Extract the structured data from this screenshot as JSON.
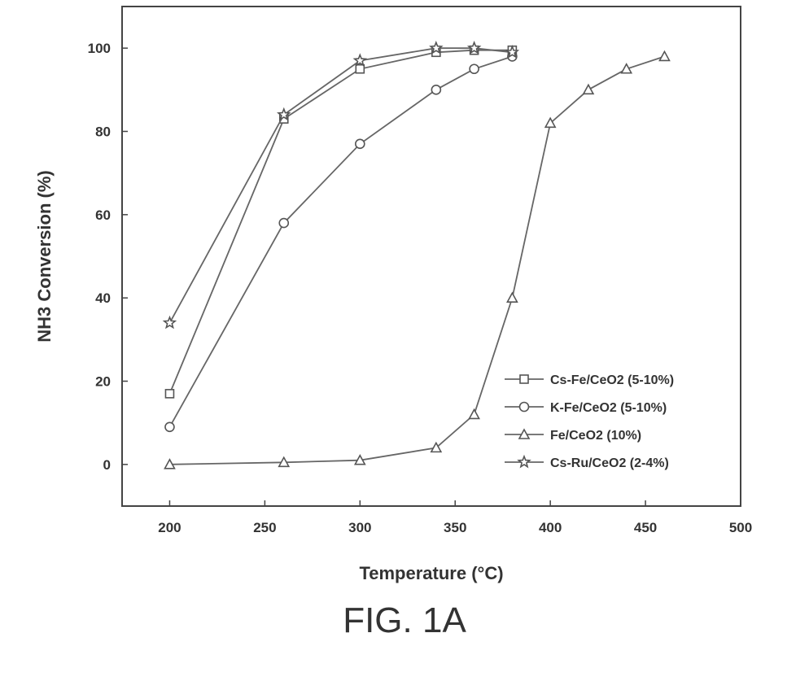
{
  "figure_caption": "FIG. 1A",
  "chart_data": {
    "type": "line",
    "xlabel": "Temperature (°C)",
    "ylabel": "NH3 Conversion (%)",
    "xlim": [
      175,
      500
    ],
    "ylim": [
      -10,
      110
    ],
    "x_ticks": [
      200,
      250,
      300,
      350,
      400,
      450,
      500
    ],
    "y_ticks": [
      0,
      20,
      40,
      60,
      80,
      100
    ],
    "grid": false,
    "legend_position": "bottom-right",
    "series": [
      {
        "name": "Cs-Fe/CeO2 (5-10%)",
        "marker": "square",
        "x": [
          200,
          260,
          300,
          340,
          360,
          380
        ],
        "y": [
          17,
          83,
          95,
          99,
          99.5,
          99.5
        ]
      },
      {
        "name": "K-Fe/CeO2 (5-10%)",
        "marker": "circle",
        "x": [
          200,
          260,
          300,
          340,
          360,
          380
        ],
        "y": [
          9,
          58,
          77,
          90,
          95,
          98
        ]
      },
      {
        "name": "Fe/CeO2 (10%)",
        "marker": "triangle",
        "x": [
          200,
          260,
          300,
          340,
          360,
          380,
          400,
          420,
          440,
          460
        ],
        "y": [
          0,
          0.5,
          1,
          4,
          12,
          40,
          82,
          90,
          95,
          98
        ]
      },
      {
        "name": "Cs-Ru/CeO2 (2-4%)",
        "marker": "star",
        "x": [
          200,
          260,
          300,
          340,
          360,
          380
        ],
        "y": [
          34,
          84,
          97,
          100,
          100,
          99
        ]
      }
    ]
  }
}
